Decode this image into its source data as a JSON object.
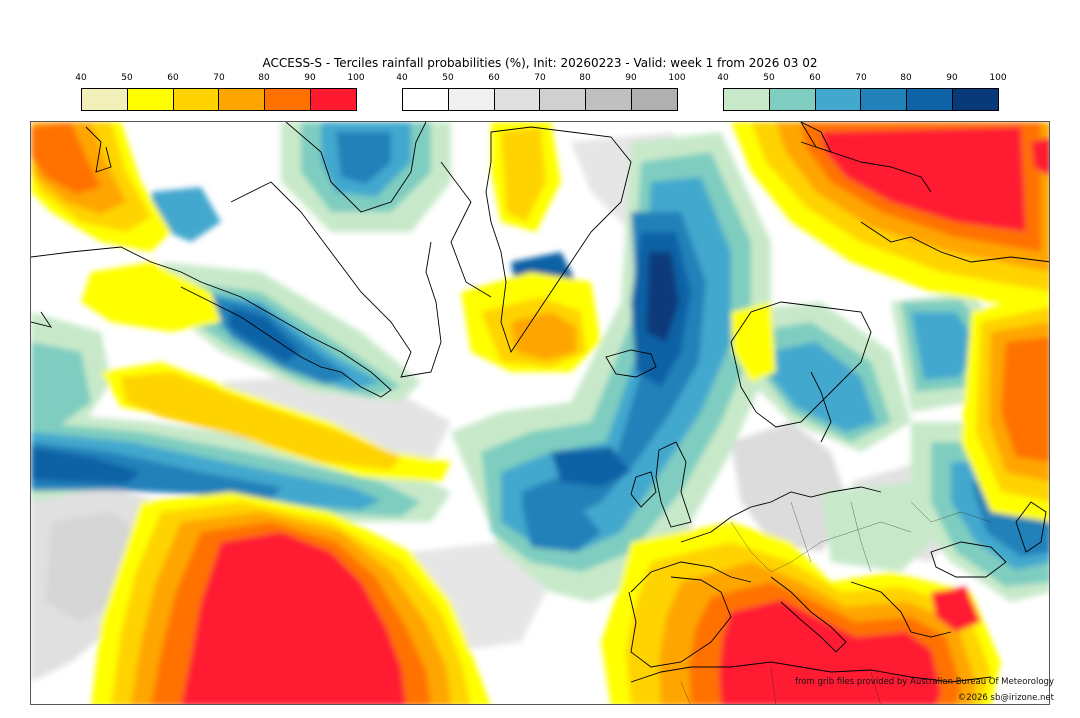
{
  "title": "ACCESS-S - Terciles rainfall probabilities (%), Init: 20260223 - Valid: week 1 from 2026 03 02",
  "colorbars": [
    {
      "name": "above",
      "ticks": [
        "40",
        "50",
        "60",
        "70",
        "80",
        "90",
        "100"
      ],
      "colors": [
        "#f2efb8",
        "#ffff00",
        "#ffd300",
        "#ffa500",
        "#ff7200",
        "#ff1a30"
      ]
    },
    {
      "name": "normal",
      "ticks": [
        "40",
        "50",
        "60",
        "70",
        "80",
        "90",
        "100"
      ],
      "colors": [
        "#ffffff",
        "#f0f0f0",
        "#e0e0e0",
        "#d0d0d0",
        "#c0c0c0",
        "#b0b0b0"
      ]
    },
    {
      "name": "below",
      "ticks": [
        "40",
        "50",
        "60",
        "70",
        "80",
        "90",
        "100"
      ],
      "colors": [
        "#c7e9c9",
        "#7ecdc0",
        "#43a8ce",
        "#2381b9",
        "#0e62a5",
        "#083a7a"
      ]
    }
  ],
  "credits": {
    "source": "from grib files provided by Australian Bureau Of Meteorology",
    "copyright": "©2026 sb@irizone.net"
  }
}
